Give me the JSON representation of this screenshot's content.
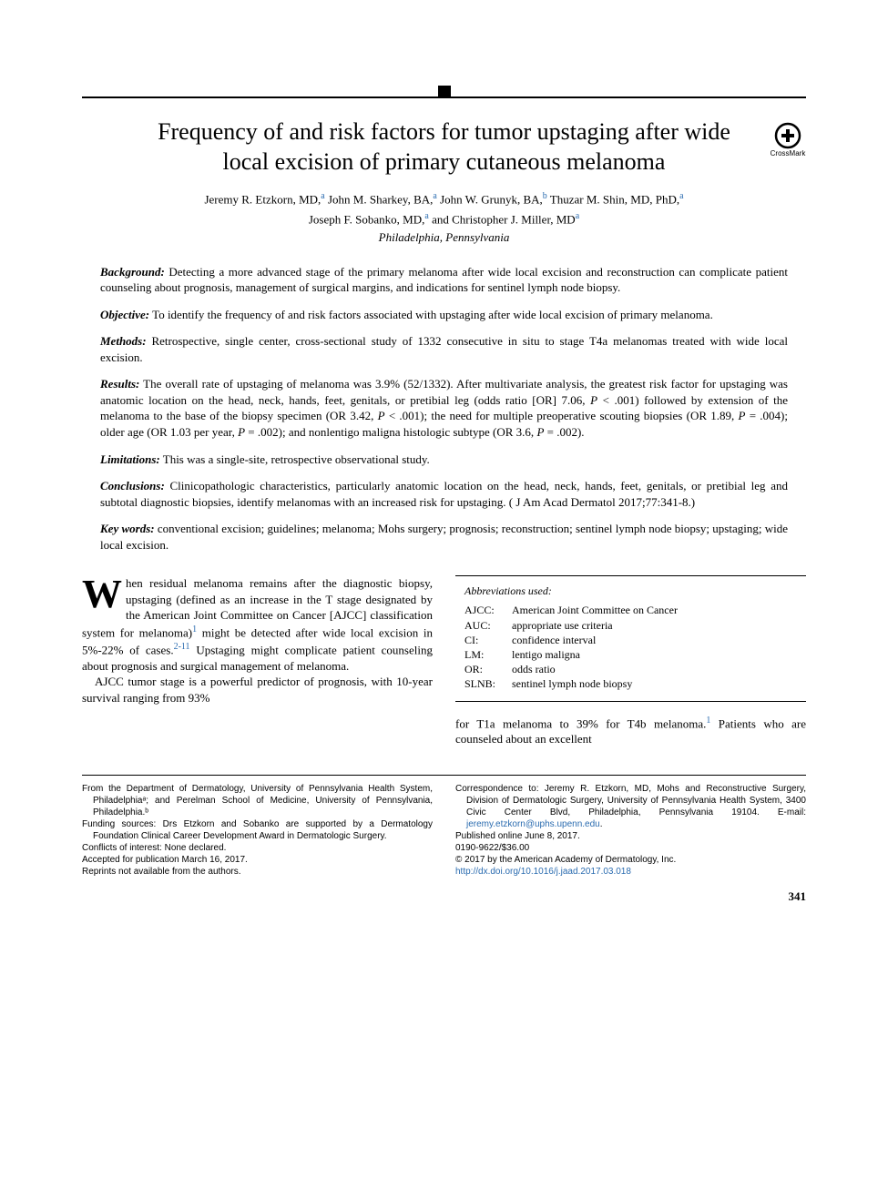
{
  "title": "Frequency of and risk factors for tumor upstaging after wide local excision of primary cutaneous melanoma",
  "crossmark_label": "CrossMark",
  "authors_line1": "Jeremy R. Etzkorn, MD,ᵃ John M. Sharkey, BA,ᵃ John W. Grunyk, BA,ᵇ Thuzar M. Shin, MD, PhD,ᵃ",
  "authors_line2": "Joseph F. Sobanko, MD,ᵃ and Christopher J. Miller, MDᵃ",
  "location": "Philadelphia, Pennsylvania",
  "abstract": {
    "background": {
      "label": "Background:",
      "text": " Detecting a more advanced stage of the primary melanoma after wide local excision and reconstruction can complicate patient counseling about prognosis, management of surgical margins, and indications for sentinel lymph node biopsy."
    },
    "objective": {
      "label": "Objective:",
      "text": " To identify the frequency of and risk factors associated with upstaging after wide local excision of primary melanoma."
    },
    "methods": {
      "label": "Methods:",
      "text": " Retrospective, single center, cross-sectional study of 1332 consecutive in situ to stage T4a melanomas treated with wide local excision."
    },
    "results": {
      "label": "Results:",
      "text": " The overall rate of upstaging of melanoma was 3.9% (52/1332). After multivariate analysis, the greatest risk factor for upstaging was anatomic location on the head, neck, hands, feet, genitals, or pretibial leg (odds ratio [OR] 7.06, P < .001) followed by extension of the melanoma to the base of the biopsy specimen (OR 3.42, P < .001); the need for multiple preoperative scouting biopsies (OR 1.89, P = .004); older age (OR 1.03 per year, P = .002); and nonlentigo maligna histologic subtype (OR 3.6, P = .002)."
    },
    "limitations": {
      "label": "Limitations:",
      "text": " This was a single-site, retrospective observational study."
    },
    "conclusions": {
      "label": "Conclusions:",
      "text": " Clinicopathologic characteristics, particularly anatomic location on the head, neck, hands, feet, genitals, or pretibial leg and subtotal diagnostic biopsies, identify melanomas with an increased risk for upstaging. ( J Am Acad Dermatol 2017;77:341-8.)"
    },
    "keywords": {
      "label": "Key words:",
      "text": " conventional excision; guidelines; melanoma; Mohs surgery; prognosis; reconstruction; sentinel lymph node biopsy; upstaging; wide local excision."
    }
  },
  "body": {
    "dropcap": "W",
    "para1_a": "hen residual melanoma remains after the diagnostic biopsy, upstaging (defined as an increase in the T stage designated by the American Joint Committee on Cancer [AJCC] classification system for melanoma)",
    "ref1": "1",
    "para1_b": " might be detected after wide local excision in 5%-22% of cases.",
    "ref2": "2-11",
    "para1_c": " Upstaging might complicate patient counseling about prognosis and surgical management of melanoma.",
    "para2": "AJCC tumor stage is a powerful predictor of prognosis, with 10-year survival ranging from 93%",
    "col2_para_a": "for T1a melanoma to 39% for T4b melanoma.",
    "col2_ref": "1",
    "col2_para_b": " Patients who are counseled about an excellent"
  },
  "abbrev": {
    "title": "Abbreviations used:",
    "items": [
      {
        "k": "AJCC:",
        "v": "American Joint Committee on Cancer"
      },
      {
        "k": "AUC:",
        "v": "appropriate use criteria"
      },
      {
        "k": "CI:",
        "v": "confidence interval"
      },
      {
        "k": "LM:",
        "v": "lentigo maligna"
      },
      {
        "k": "OR:",
        "v": "odds ratio"
      },
      {
        "k": "SLNB:",
        "v": "sentinel lymph node biopsy"
      }
    ]
  },
  "footnotes": {
    "left": [
      "From the Department of Dermatology, University of Pennsylvania Health System, Philadelphiaᵃ; and Perelman School of Medicine, University of Pennsylvania, Philadelphia.ᵇ",
      "Funding sources: Drs Etzkorn and Sobanko are supported by a Dermatology Foundation Clinical Career Development Award in Dermatologic Surgery.",
      "Conflicts of interest: None declared.",
      "Accepted for publication March 16, 2017.",
      "Reprints not available from the authors."
    ],
    "right": [
      {
        "text": "Correspondence to: Jeremy R. Etzkorn, MD, Mohs and Reconstructive Surgery, Division of Dermatologic Surgery, University of Pennsylvania Health System, 3400 Civic Center Blvd, Philadelphia, Pennsylvania 19104. E-mail: ",
        "link": "jeremy.etzkorn@uphs.upenn.edu",
        "suffix": "."
      },
      {
        "text": "Published online June 8, 2017."
      },
      {
        "text": "0190-9622/$36.00"
      },
      {
        "text": "© 2017 by the American Academy of Dermatology, Inc."
      },
      {
        "link": "http://dx.doi.org/10.1016/j.jaad.2017.03.018"
      }
    ]
  },
  "page_number": "341",
  "colors": {
    "link": "#2b6cb0",
    "text": "#000000",
    "background": "#ffffff"
  }
}
